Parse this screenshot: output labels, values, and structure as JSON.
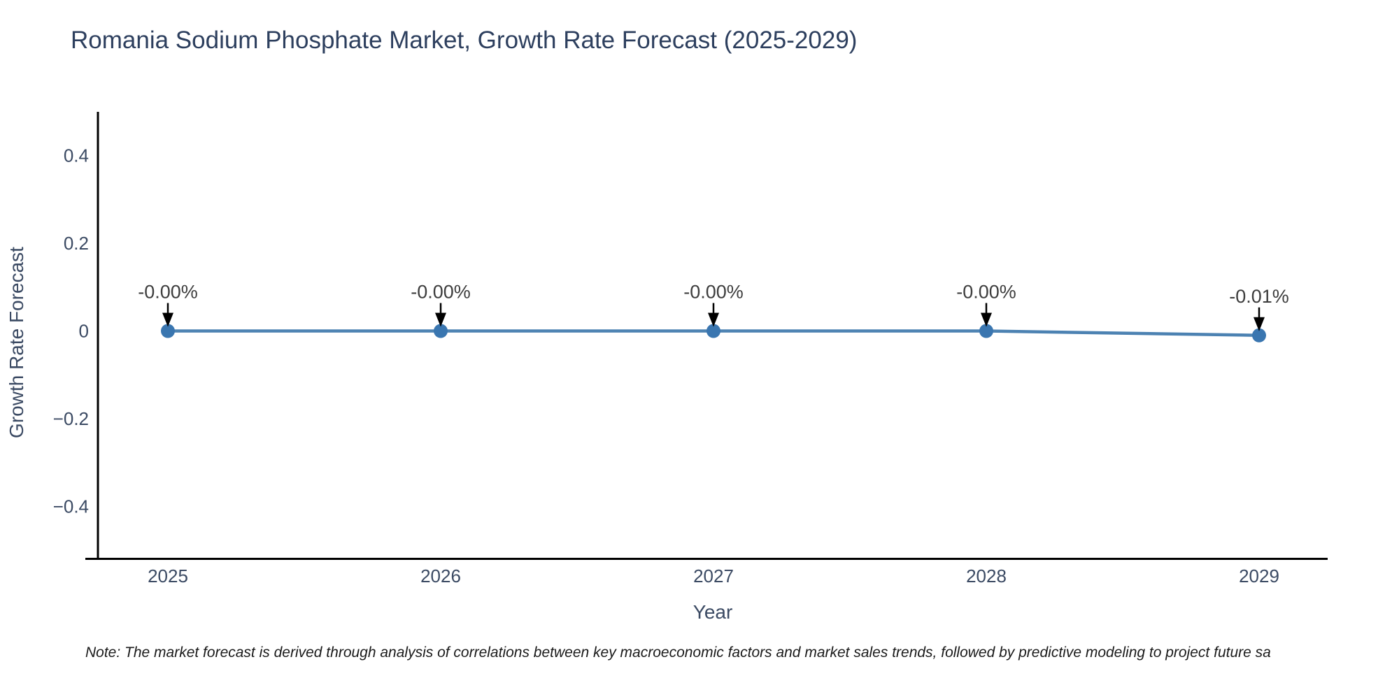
{
  "title": {
    "text": "Romania Sodium Phosphate Market, Growth Rate Forecast (2025-2029)",
    "color": "#2d3f5e"
  },
  "note": {
    "text": "Note: The market forecast is derived through analysis of correlations between key macroeconomic factors and market sales trends, followed by predictive modeling to project future sa"
  },
  "chart_data": {
    "type": "line",
    "title": "Romania Sodium Phosphate Market, Growth Rate Forecast (2025-2029)",
    "x": [
      "2025",
      "2026",
      "2027",
      "2028",
      "2029"
    ],
    "values": [
      -0.0,
      -0.0,
      -0.0,
      -0.0,
      -0.01
    ],
    "point_labels": [
      "-0.00%",
      "-0.00%",
      "-0.00%",
      "-0.00%",
      "-0.01%"
    ],
    "xlabel": "Year",
    "ylabel": "Growth Rate Forecast",
    "yticks": [
      0.4,
      0.2,
      0,
      -0.2,
      -0.4
    ],
    "ytick_labels": [
      "0.4",
      "0.2",
      "0",
      "−0.2",
      "−0.4"
    ],
    "ylim": [
      -0.52,
      0.5
    ],
    "grid": false,
    "legend": "none",
    "line_color": "#4c82b2",
    "marker_color": "#3a76b0",
    "annotation_color": "#3d3d3d",
    "axis_line_color": "#000000"
  }
}
